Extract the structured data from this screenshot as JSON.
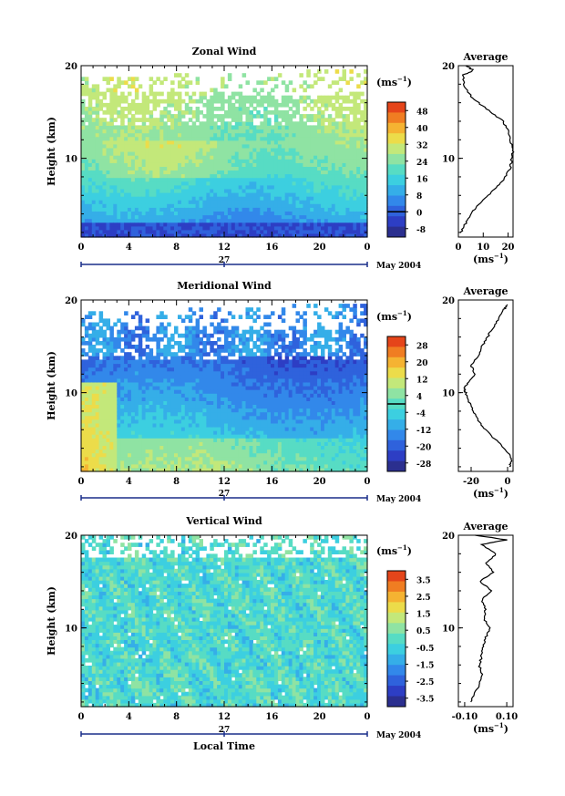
{
  "chart_data": [
    {
      "type": "heatmap",
      "title": "Zonal Wind",
      "ylabel": "Height (km)",
      "xlabel": "",
      "x_ticks": [
        "0",
        "4",
        "8",
        "12",
        "16",
        "20",
        "0"
      ],
      "y_ticks": [
        "10",
        "20"
      ],
      "date_mid": "27",
      "date_right": "May 2004",
      "xlim": [
        0,
        24
      ],
      "ylim": [
        1.5,
        20
      ],
      "colorbar": {
        "unit_label": "(ms",
        "unit_exp": "−1",
        "unit_close": ")",
        "ticks": [
          "48",
          "40",
          "32",
          "24",
          "16",
          "8",
          "0",
          "-8"
        ],
        "vmin": -12,
        "vmax": 52,
        "zero_line": 0
      },
      "profile": {
        "title": "Average",
        "x_ticks": [
          "0",
          "10",
          "20"
        ],
        "xlim": [
          0,
          22
        ],
        "xlabel": "(ms",
        "xlabel_exp": "−1",
        "xlabel_close": ")",
        "y_ticks": [
          "10",
          "20"
        ],
        "heights": [
          2,
          3,
          4,
          5,
          6,
          7,
          8,
          9,
          10,
          11,
          12,
          13,
          14,
          15,
          16,
          17,
          18,
          19,
          19.5,
          20
        ],
        "values": [
          1,
          3,
          5,
          8,
          12,
          16,
          19,
          21,
          21.5,
          22,
          21,
          20,
          18,
          13,
          8,
          4,
          2,
          2,
          6,
          3
        ]
      },
      "field": {
        "top_km": 17.5,
        "shear_peak_km": 10.5
      }
    },
    {
      "type": "heatmap",
      "title": "Meridional Wind",
      "ylabel": "Height (km)",
      "xlabel": "",
      "x_ticks": [
        "0",
        "4",
        "8",
        "12",
        "16",
        "20",
        "0"
      ],
      "y_ticks": [
        "10",
        "20"
      ],
      "date_mid": "27",
      "date_right": "May 2004",
      "xlim": [
        0,
        24
      ],
      "ylim": [
        1.5,
        20
      ],
      "colorbar": {
        "unit_label": "(ms",
        "unit_exp": "−1",
        "unit_close": ")",
        "ticks": [
          "28",
          "20",
          "12",
          "4",
          "-4",
          "-12",
          "-20",
          "-28"
        ],
        "vmin": -32,
        "vmax": 32,
        "zero_line": 0
      },
      "profile": {
        "title": "Average",
        "x_ticks": [
          "-20",
          "0"
        ],
        "xlim": [
          -27,
          3
        ],
        "xlabel": "(ms",
        "xlabel_exp": "−1",
        "xlabel_close": ")",
        "y_ticks": [
          "10",
          "20"
        ],
        "heights": [
          2,
          2.5,
          3,
          4,
          5,
          6,
          7,
          8,
          9,
          10,
          10.5,
          11,
          12,
          13,
          14,
          15,
          16,
          17,
          18,
          19,
          19.5
        ],
        "values": [
          1,
          2,
          2,
          -2,
          -7,
          -12,
          -16,
          -19,
          -21,
          -23,
          -24,
          -22,
          -18,
          -20,
          -16,
          -14,
          -11,
          -8,
          -5,
          -2,
          0
        ]
      },
      "field": {
        "top_km": 17.5
      }
    },
    {
      "type": "heatmap",
      "title": "Vertical Wind",
      "ylabel": "Height (km)",
      "xlabel": "Local Time",
      "x_ticks": [
        "0",
        "4",
        "8",
        "12",
        "16",
        "20",
        "0"
      ],
      "y_ticks": [
        "10",
        "20"
      ],
      "date_mid": "27",
      "date_right": "May 2004",
      "xlim": [
        0,
        24
      ],
      "ylim": [
        1.5,
        20
      ],
      "colorbar": {
        "unit_label": "(ms",
        "unit_exp": "−1",
        "unit_close": ")",
        "ticks": [
          "3.5",
          "2.5",
          "1.5",
          "0.5",
          "-0.5",
          "-1.5",
          "-2.5",
          "-3.5"
        ],
        "vmin": -4,
        "vmax": 4,
        "zero_line": null
      },
      "profile": {
        "title": "Average",
        "x_ticks": [
          "-0.10",
          "0.10"
        ],
        "xlim": [
          -0.13,
          0.13
        ],
        "xlabel": "(ms",
        "xlabel_exp": "−1",
        "xlabel_close": ")",
        "y_ticks": [
          "10",
          "20"
        ],
        "heights": [
          2,
          3,
          4,
          5,
          6,
          7,
          8,
          9,
          10,
          11,
          12,
          13,
          14,
          15,
          16,
          17,
          18,
          19,
          19.5,
          20
        ],
        "values": [
          -0.07,
          -0.05,
          -0.03,
          -0.02,
          -0.03,
          -0.02,
          -0.01,
          0,
          0.02,
          -0.01,
          0,
          -0.02,
          0.03,
          -0.03,
          0.04,
          0,
          0.05,
          -0.02,
          0.1,
          -0.05
        ]
      },
      "field": {
        "top_km": 19.5
      }
    }
  ]
}
